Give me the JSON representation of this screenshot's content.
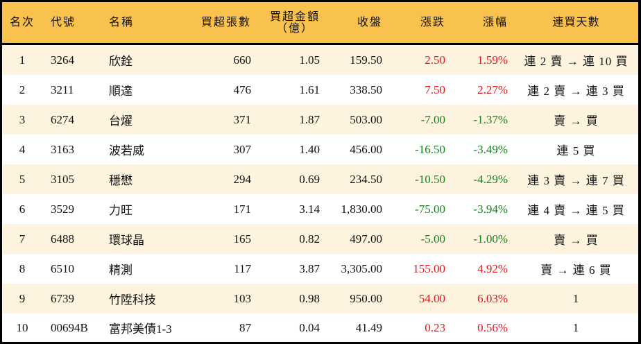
{
  "header": {
    "rank": "名次",
    "code": "代號",
    "name": "名稱",
    "net_buy_lots": "買超張數",
    "net_buy_amount": "買超金額",
    "net_buy_amount_unit": "（億）",
    "close": "收盤",
    "change": "漲跌",
    "change_pct": "漲幅",
    "streak": "連買天數"
  },
  "colors": {
    "header_bg": "#F9C14E",
    "row_alt_bg": "#FDF3DF",
    "up": "#E8141B",
    "down": "#15851B"
  },
  "rows": [
    {
      "rank": "1",
      "code": "3264",
      "name": "欣銓",
      "lots": "660",
      "amount": "1.05",
      "close": "159.50",
      "change": "2.50",
      "pct": "1.59%",
      "dir": "up",
      "streak": "連 2 賣 → 連 10 買"
    },
    {
      "rank": "2",
      "code": "3211",
      "name": "順達",
      "lots": "476",
      "amount": "1.61",
      "close": "338.50",
      "change": "7.50",
      "pct": "2.27%",
      "dir": "up",
      "streak": "連 2 賣 → 連 3 買"
    },
    {
      "rank": "3",
      "code": "6274",
      "name": "台燿",
      "lots": "371",
      "amount": "1.87",
      "close": "503.00",
      "change": "-7.00",
      "pct": "-1.37%",
      "dir": "down",
      "streak": "賣 → 買"
    },
    {
      "rank": "4",
      "code": "3163",
      "name": "波若威",
      "lots": "307",
      "amount": "1.40",
      "close": "456.00",
      "change": "-16.50",
      "pct": "-3.49%",
      "dir": "down",
      "streak": "連 5 買"
    },
    {
      "rank": "5",
      "code": "3105",
      "name": "穩懋",
      "lots": "294",
      "amount": "0.69",
      "close": "234.50",
      "change": "-10.50",
      "pct": "-4.29%",
      "dir": "down",
      "streak": "連 3 賣 → 連 7 買"
    },
    {
      "rank": "6",
      "code": "3529",
      "name": "力旺",
      "lots": "171",
      "amount": "3.14",
      "close": "1,830.00",
      "change": "-75.00",
      "pct": "-3.94%",
      "dir": "down",
      "streak": "連 4 賣 → 連 5 買"
    },
    {
      "rank": "7",
      "code": "6488",
      "name": "環球晶",
      "lots": "165",
      "amount": "0.82",
      "close": "497.00",
      "change": "-5.00",
      "pct": "-1.00%",
      "dir": "down",
      "streak": "賣 → 買"
    },
    {
      "rank": "8",
      "code": "6510",
      "name": "精測",
      "lots": "117",
      "amount": "3.87",
      "close": "3,305.00",
      "change": "155.00",
      "pct": "4.92%",
      "dir": "up",
      "streak": "賣 → 連 6 買"
    },
    {
      "rank": "9",
      "code": "6739",
      "name": "竹陞科技",
      "lots": "103",
      "amount": "0.98",
      "close": "950.00",
      "change": "54.00",
      "pct": "6.03%",
      "dir": "up",
      "streak": "1"
    },
    {
      "rank": "10",
      "code": "00694B",
      "name": "富邦美債1-3",
      "lots": "87",
      "amount": "0.04",
      "close": "41.49",
      "change": "0.23",
      "pct": "0.56%",
      "dir": "up",
      "streak": "1"
    }
  ]
}
